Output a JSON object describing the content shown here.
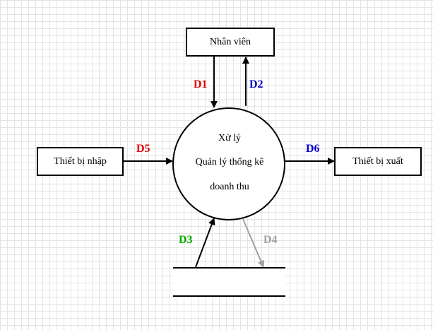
{
  "external_entities": {
    "employee": "Nhân viên",
    "input_device": "Thiết bị nhập",
    "output_device": "Thiết bị xuất"
  },
  "process": {
    "line1": "Xử lý",
    "line2": "Quản lý thống kê",
    "line3": "doanh thu"
  },
  "flows": {
    "d1": "D1",
    "d2": "D2",
    "d3": "D3",
    "d4": "D4",
    "d5": "D5",
    "d6": "D6"
  },
  "colors": {
    "d1": "#e00000",
    "d2": "#0000cc",
    "d3": "#00b000",
    "d4": "#a0a0a0",
    "d5": "#e00000",
    "d6": "#0000cc",
    "line": "#000000",
    "grid": "#e4e4e4"
  }
}
